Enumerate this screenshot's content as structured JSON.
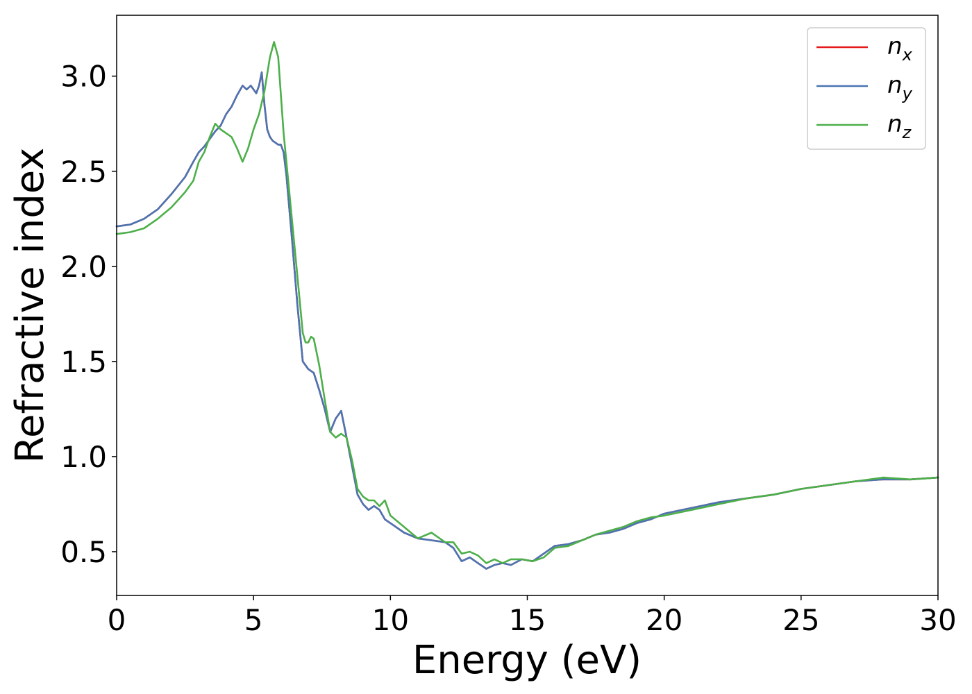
{
  "chart_data": {
    "type": "line",
    "xlabel": "Energy (eV)",
    "ylabel": "Refractive index",
    "xlim": [
      0,
      30
    ],
    "ylim": [
      0.27,
      3.32
    ],
    "xticks": [
      0,
      5,
      10,
      15,
      20,
      25,
      30
    ],
    "yticks": [
      0.5,
      1.0,
      1.5,
      2.0,
      2.5,
      3.0
    ],
    "grid": false,
    "legend_position": "top-right",
    "series": [
      {
        "name": "n",
        "subscript": "x",
        "color": "#e41a1c",
        "x": [
          0,
          0.5,
          1,
          1.5,
          2,
          2.5,
          2.8,
          3.0,
          3.2,
          3.4,
          3.6,
          3.8,
          4.0,
          4.2,
          4.4,
          4.6,
          4.75,
          4.9,
          5.0,
          5.1,
          5.2,
          5.3,
          5.4,
          5.5,
          5.6,
          5.7,
          5.8,
          5.9,
          6.0,
          6.1,
          6.2,
          6.4,
          6.6,
          6.8,
          7.0,
          7.2,
          7.4,
          7.6,
          7.8,
          8.0,
          8.2,
          8.4,
          8.6,
          8.8,
          9.0,
          9.2,
          9.4,
          9.6,
          9.8,
          10.0,
          10.5,
          11.0,
          11.5,
          12.0,
          12.3,
          12.6,
          12.9,
          13.2,
          13.5,
          13.8,
          14.1,
          14.4,
          14.8,
          15.2,
          15.6,
          16.0,
          16.5,
          17.0,
          17.5,
          18.0,
          18.5,
          19.0,
          19.5,
          20.0,
          21.0,
          22.0,
          23.0,
          24.0,
          25.0,
          26.0,
          27.0,
          28.0,
          29.0,
          30.0
        ],
        "y": [
          2.21,
          2.22,
          2.25,
          2.3,
          2.38,
          2.47,
          2.55,
          2.6,
          2.63,
          2.67,
          2.71,
          2.74,
          2.8,
          2.84,
          2.9,
          2.95,
          2.93,
          2.95,
          2.93,
          2.91,
          2.95,
          3.02,
          2.85,
          2.72,
          2.68,
          2.66,
          2.65,
          2.64,
          2.64,
          2.6,
          2.48,
          2.15,
          1.8,
          1.5,
          1.46,
          1.44,
          1.35,
          1.25,
          1.13,
          1.2,
          1.24,
          1.1,
          0.95,
          0.8,
          0.75,
          0.72,
          0.74,
          0.72,
          0.67,
          0.65,
          0.6,
          0.57,
          0.56,
          0.55,
          0.52,
          0.45,
          0.47,
          0.44,
          0.41,
          0.43,
          0.44,
          0.43,
          0.46,
          0.45,
          0.49,
          0.53,
          0.54,
          0.56,
          0.59,
          0.6,
          0.62,
          0.65,
          0.67,
          0.7,
          0.73,
          0.76,
          0.78,
          0.8,
          0.83,
          0.85,
          0.87,
          0.88,
          0.88,
          0.89
        ]
      },
      {
        "name": "n",
        "subscript": "y",
        "color": "#4a75b2",
        "x": [
          0,
          0.5,
          1,
          1.5,
          2,
          2.5,
          2.8,
          3.0,
          3.2,
          3.4,
          3.6,
          3.8,
          4.0,
          4.2,
          4.4,
          4.6,
          4.75,
          4.9,
          5.0,
          5.1,
          5.2,
          5.3,
          5.4,
          5.5,
          5.6,
          5.7,
          5.8,
          5.9,
          6.0,
          6.1,
          6.2,
          6.4,
          6.6,
          6.8,
          7.0,
          7.2,
          7.4,
          7.6,
          7.8,
          8.0,
          8.2,
          8.4,
          8.6,
          8.8,
          9.0,
          9.2,
          9.4,
          9.6,
          9.8,
          10.0,
          10.5,
          11.0,
          11.5,
          12.0,
          12.3,
          12.6,
          12.9,
          13.2,
          13.5,
          13.8,
          14.1,
          14.4,
          14.8,
          15.2,
          15.6,
          16.0,
          16.5,
          17.0,
          17.5,
          18.0,
          18.5,
          19.0,
          19.5,
          20.0,
          21.0,
          22.0,
          23.0,
          24.0,
          25.0,
          26.0,
          27.0,
          28.0,
          29.0,
          30.0
        ],
        "y": [
          2.21,
          2.22,
          2.25,
          2.3,
          2.38,
          2.47,
          2.55,
          2.6,
          2.63,
          2.67,
          2.71,
          2.74,
          2.8,
          2.84,
          2.9,
          2.95,
          2.93,
          2.95,
          2.93,
          2.91,
          2.95,
          3.02,
          2.85,
          2.72,
          2.68,
          2.66,
          2.65,
          2.64,
          2.64,
          2.6,
          2.48,
          2.15,
          1.8,
          1.5,
          1.46,
          1.44,
          1.35,
          1.25,
          1.13,
          1.2,
          1.24,
          1.1,
          0.95,
          0.8,
          0.75,
          0.72,
          0.74,
          0.72,
          0.67,
          0.65,
          0.6,
          0.57,
          0.56,
          0.55,
          0.52,
          0.45,
          0.47,
          0.44,
          0.41,
          0.43,
          0.44,
          0.43,
          0.46,
          0.45,
          0.49,
          0.53,
          0.54,
          0.56,
          0.59,
          0.6,
          0.62,
          0.65,
          0.67,
          0.7,
          0.73,
          0.76,
          0.78,
          0.8,
          0.83,
          0.85,
          0.87,
          0.88,
          0.88,
          0.89
        ]
      },
      {
        "name": "n",
        "subscript": "z",
        "color": "#4daf4a",
        "x": [
          0,
          0.5,
          1,
          1.5,
          2,
          2.5,
          2.8,
          3.0,
          3.2,
          3.4,
          3.6,
          3.8,
          4.0,
          4.2,
          4.4,
          4.6,
          4.8,
          5.0,
          5.2,
          5.4,
          5.6,
          5.75,
          5.9,
          6.0,
          6.1,
          6.2,
          6.4,
          6.6,
          6.8,
          6.9,
          7.0,
          7.1,
          7.2,
          7.4,
          7.6,
          7.8,
          8.0,
          8.2,
          8.4,
          8.6,
          8.8,
          9.0,
          9.2,
          9.4,
          9.6,
          9.8,
          10.0,
          10.5,
          11.0,
          11.5,
          12.0,
          12.3,
          12.6,
          12.9,
          13.2,
          13.5,
          13.8,
          14.1,
          14.4,
          14.8,
          15.2,
          15.6,
          16.0,
          16.5,
          17.0,
          17.5,
          18.0,
          18.5,
          19.0,
          19.5,
          20.0,
          21.0,
          22.0,
          23.0,
          24.0,
          25.0,
          26.0,
          27.0,
          28.0,
          29.0,
          30.0
        ],
        "y": [
          2.17,
          2.18,
          2.2,
          2.25,
          2.31,
          2.39,
          2.45,
          2.55,
          2.6,
          2.68,
          2.75,
          2.72,
          2.7,
          2.68,
          2.62,
          2.55,
          2.62,
          2.72,
          2.8,
          2.92,
          3.1,
          3.18,
          3.1,
          2.9,
          2.7,
          2.55,
          2.25,
          1.95,
          1.65,
          1.6,
          1.6,
          1.63,
          1.62,
          1.48,
          1.3,
          1.13,
          1.1,
          1.12,
          1.1,
          0.98,
          0.83,
          0.79,
          0.77,
          0.77,
          0.74,
          0.77,
          0.69,
          0.63,
          0.57,
          0.6,
          0.55,
          0.55,
          0.49,
          0.5,
          0.48,
          0.44,
          0.46,
          0.44,
          0.46,
          0.46,
          0.45,
          0.47,
          0.52,
          0.53,
          0.56,
          0.59,
          0.61,
          0.63,
          0.66,
          0.68,
          0.69,
          0.72,
          0.75,
          0.78,
          0.8,
          0.83,
          0.85,
          0.87,
          0.89,
          0.88,
          0.89
        ]
      }
    ]
  }
}
